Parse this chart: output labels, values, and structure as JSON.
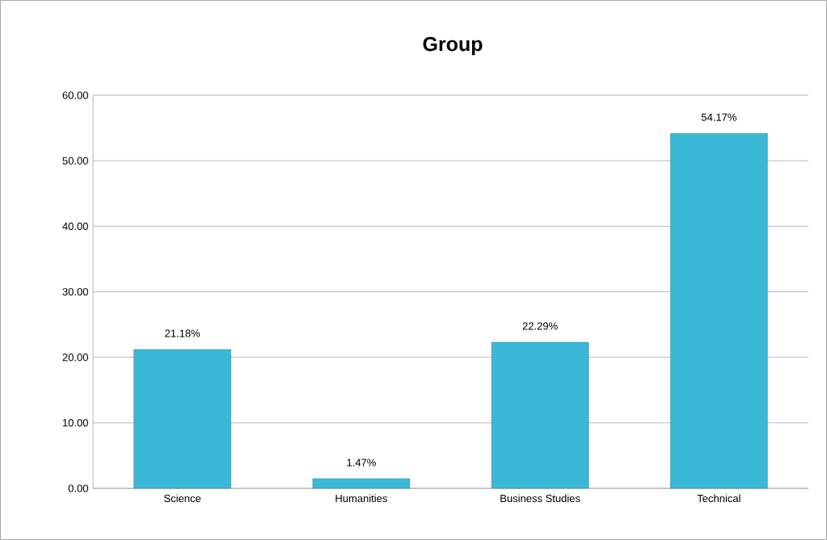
{
  "chart_data": {
    "type": "bar",
    "title": "Group",
    "categories": [
      "Science",
      "Humanities",
      "Business Studies",
      "Technical"
    ],
    "values": [
      21.18,
      1.47,
      22.29,
      54.17
    ],
    "value_labels": [
      "21.18%",
      "1.47%",
      "22.29%",
      "54.17%"
    ],
    "color": "#3bb8d8",
    "ylim": [
      0,
      60
    ],
    "yticks": [
      {
        "value": 0,
        "label": "0.00"
      },
      {
        "value": 10,
        "label": "10.00"
      },
      {
        "value": 20,
        "label": "20.00"
      },
      {
        "value": 30,
        "label": "30.00"
      },
      {
        "value": 40,
        "label": "40.00"
      },
      {
        "value": 50,
        "label": "50.00"
      },
      {
        "value": 60,
        "label": "60.00"
      }
    ],
    "grid": "y"
  }
}
